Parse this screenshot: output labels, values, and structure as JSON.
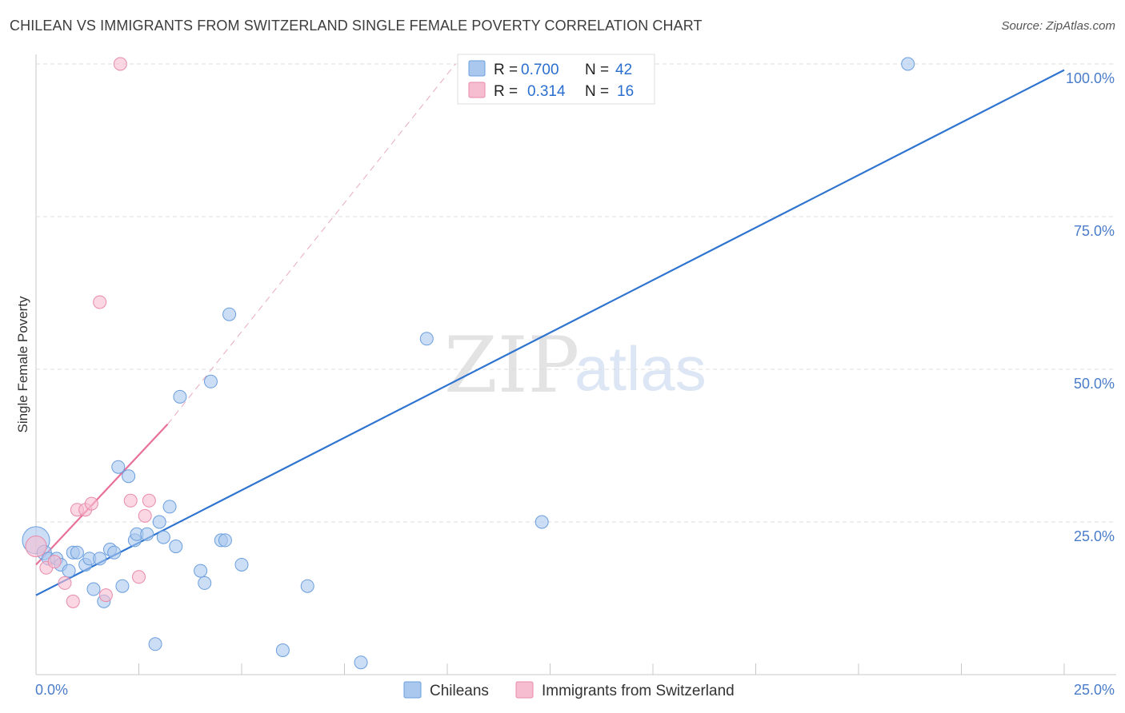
{
  "header": {
    "title": "CHILEAN VS IMMIGRANTS FROM SWITZERLAND SINGLE FEMALE POVERTY CORRELATION CHART",
    "source": "Source: ZipAtlas.com"
  },
  "watermark": {
    "zip": "ZIP",
    "atlas": "atlas"
  },
  "colors": {
    "blue": "#4a86d8",
    "blue_fill": "#aac8ee",
    "pink": "#e8709a",
    "pink_fill": "#f6bdd0",
    "tick": "#4a7cc9"
  },
  "legend": {
    "r_label": "R =",
    "n_label": "N =",
    "series": [
      {
        "name": "Chileans",
        "r": "0.700",
        "n": "42"
      },
      {
        "name": "Immigrants from Switzerland",
        "r": "0.314",
        "n": "16"
      }
    ]
  },
  "chart_data": {
    "type": "scatter",
    "title": "CHILEAN VS IMMIGRANTS FROM SWITZERLAND SINGLE FEMALE POVERTY CORRELATION CHART",
    "xlabel": "",
    "ylabel": "Single Female Poverty",
    "xlim": [
      0,
      25
    ],
    "ylim": [
      0,
      100
    ],
    "x_tick_labels": [
      "0.0%",
      "25.0%"
    ],
    "y_ticks": [
      {
        "value": 25,
        "label": "25.0%"
      },
      {
        "value": 50,
        "label": "50.0%"
      },
      {
        "value": 75,
        "label": "75.0%"
      },
      {
        "value": 100,
        "label": "100.0%"
      }
    ],
    "grid": true,
    "series": [
      {
        "name": "Chileans",
        "trend": {
          "x": [
            0,
            25
          ],
          "y": [
            13,
            99
          ]
        },
        "points": [
          {
            "x": 0.0,
            "y": 22,
            "s": 17
          },
          {
            "x": 0.2,
            "y": 20,
            "s": 9
          },
          {
            "x": 0.3,
            "y": 19,
            "s": 8
          },
          {
            "x": 0.5,
            "y": 19,
            "s": 8
          },
          {
            "x": 0.6,
            "y": 18,
            "s": 8
          },
          {
            "x": 0.8,
            "y": 17,
            "s": 8
          },
          {
            "x": 0.9,
            "y": 20,
            "s": 8
          },
          {
            "x": 1.0,
            "y": 20,
            "s": 8
          },
          {
            "x": 1.2,
            "y": 18,
            "s": 8
          },
          {
            "x": 1.3,
            "y": 19,
            "s": 8
          },
          {
            "x": 1.4,
            "y": 14,
            "s": 8
          },
          {
            "x": 1.55,
            "y": 19,
            "s": 8
          },
          {
            "x": 1.65,
            "y": 12,
            "s": 8
          },
          {
            "x": 1.8,
            "y": 20.5,
            "s": 8
          },
          {
            "x": 1.9,
            "y": 20,
            "s": 8
          },
          {
            "x": 2.0,
            "y": 34,
            "s": 8
          },
          {
            "x": 2.1,
            "y": 14.5,
            "s": 8
          },
          {
            "x": 2.25,
            "y": 32.5,
            "s": 8
          },
          {
            "x": 2.4,
            "y": 22,
            "s": 8
          },
          {
            "x": 2.45,
            "y": 23,
            "s": 8
          },
          {
            "x": 2.7,
            "y": 23,
            "s": 8
          },
          {
            "x": 2.9,
            "y": 5,
            "s": 8
          },
          {
            "x": 3.0,
            "y": 25,
            "s": 8
          },
          {
            "x": 3.1,
            "y": 22.5,
            "s": 8
          },
          {
            "x": 3.25,
            "y": 27.5,
            "s": 8
          },
          {
            "x": 3.4,
            "y": 21,
            "s": 8
          },
          {
            "x": 3.5,
            "y": 45.5,
            "s": 8
          },
          {
            "x": 4.0,
            "y": 17,
            "s": 8
          },
          {
            "x": 4.1,
            "y": 15,
            "s": 8
          },
          {
            "x": 4.25,
            "y": 48,
            "s": 8
          },
          {
            "x": 4.5,
            "y": 22,
            "s": 8
          },
          {
            "x": 4.6,
            "y": 22,
            "s": 8
          },
          {
            "x": 4.7,
            "y": 59,
            "s": 8
          },
          {
            "x": 5.0,
            "y": 18,
            "s": 8
          },
          {
            "x": 6.0,
            "y": 4,
            "s": 8
          },
          {
            "x": 6.6,
            "y": 14.5,
            "s": 8
          },
          {
            "x": 7.9,
            "y": 2,
            "s": 8
          },
          {
            "x": 9.5,
            "y": 55,
            "s": 8
          },
          {
            "x": 12.3,
            "y": 25,
            "s": 8
          },
          {
            "x": 21.2,
            "y": 100,
            "s": 8
          }
        ]
      },
      {
        "name": "Immigrants from Switzerland",
        "trend": {
          "x": [
            0,
            3.2
          ],
          "y": [
            18,
            41
          ]
        },
        "trend_dashed": {
          "x": [
            3.2,
            10.2
          ],
          "y": [
            41,
            100
          ]
        },
        "points": [
          {
            "x": 0.0,
            "y": 21,
            "s": 13
          },
          {
            "x": 0.25,
            "y": 17.5,
            "s": 8
          },
          {
            "x": 0.45,
            "y": 18.5,
            "s": 8
          },
          {
            "x": 0.7,
            "y": 15,
            "s": 8
          },
          {
            "x": 0.9,
            "y": 12,
            "s": 8
          },
          {
            "x": 1.0,
            "y": 27,
            "s": 8
          },
          {
            "x": 1.2,
            "y": 27,
            "s": 8
          },
          {
            "x": 1.35,
            "y": 28,
            "s": 8
          },
          {
            "x": 1.55,
            "y": 61,
            "s": 8
          },
          {
            "x": 1.7,
            "y": 13,
            "s": 8
          },
          {
            "x": 2.05,
            "y": 100,
            "s": 8
          },
          {
            "x": 2.3,
            "y": 28.5,
            "s": 8
          },
          {
            "x": 2.5,
            "y": 16,
            "s": 8
          },
          {
            "x": 2.65,
            "y": 26,
            "s": 8
          },
          {
            "x": 2.75,
            "y": 28.5,
            "s": 8
          }
        ]
      }
    ]
  }
}
